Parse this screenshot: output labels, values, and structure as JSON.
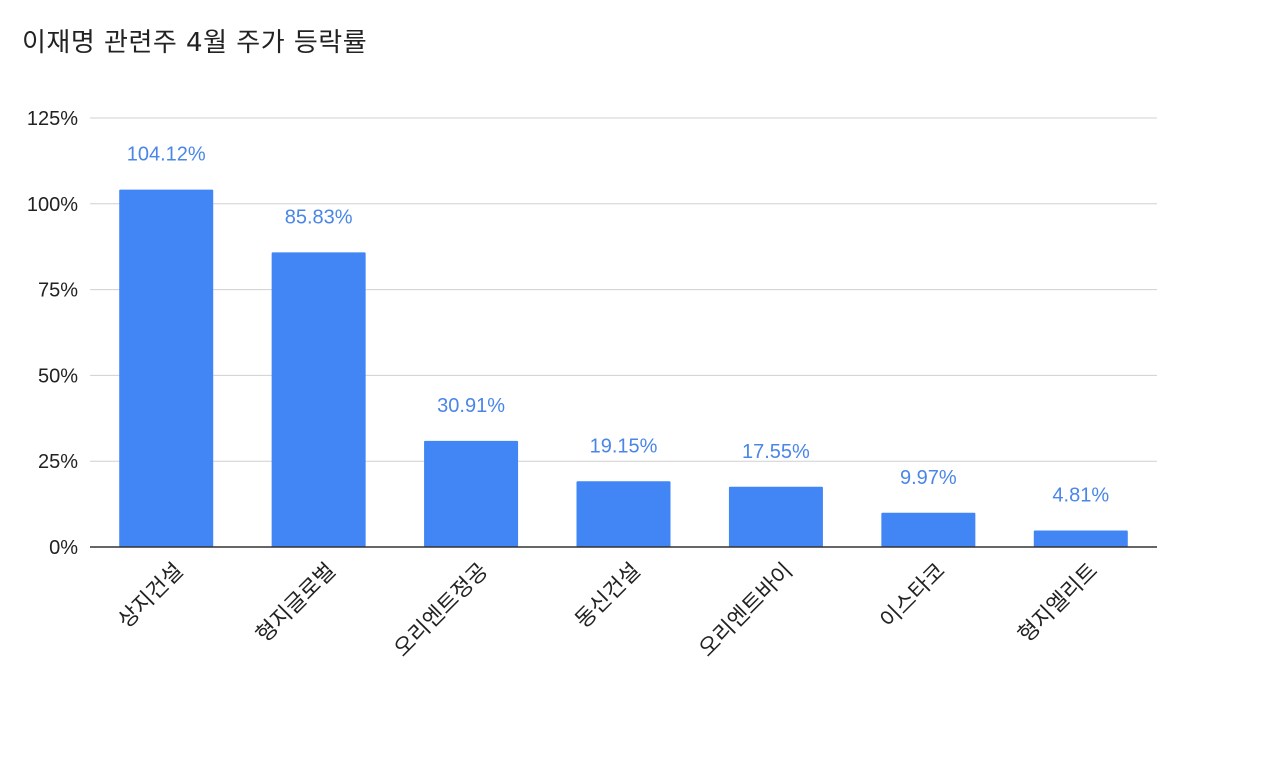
{
  "chart_data": {
    "type": "bar",
    "title": "이재명 관련주 4월 주가 등락률",
    "categories": [
      "상지건설",
      "형지글로벌",
      "오리엔트정공",
      "동신건설",
      "오리엔트바이",
      "이스타코",
      "형지엘리트"
    ],
    "values": [
      104.12,
      85.83,
      30.91,
      19.15,
      17.55,
      9.97,
      4.81
    ],
    "data_labels": [
      "104.12%",
      "85.83%",
      "30.91%",
      "19.15%",
      "17.55%",
      "9.97%",
      "4.81%"
    ],
    "ylim": [
      0,
      125
    ],
    "yticks": [
      0,
      25,
      50,
      75,
      100,
      125
    ],
    "ytick_labels": [
      "0%",
      "25%",
      "50%",
      "75%",
      "100%",
      "125%"
    ],
    "xlabel": "",
    "ylabel": "",
    "grid": true,
    "bar_color": "#4285f4",
    "label_color": "#4a86e8",
    "grid_color": "#d0d0d0",
    "axis_color": "#333333"
  }
}
